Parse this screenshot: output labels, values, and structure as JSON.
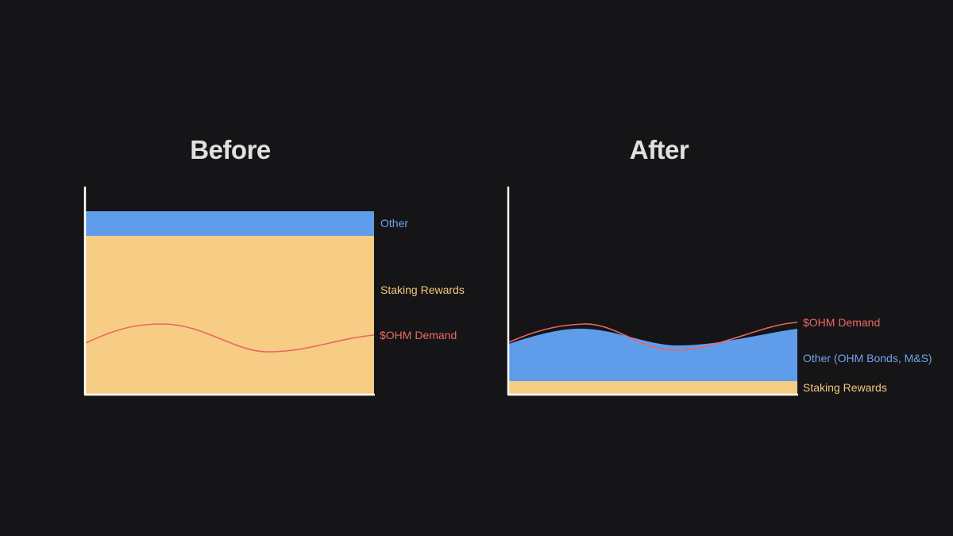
{
  "colors": {
    "background": "#151416",
    "other": "#5f9deb",
    "staking": "#f7cc85",
    "demand": "#e9675e",
    "axis": "#ffffff"
  },
  "before": {
    "title": "Before",
    "labels": {
      "other": "Other",
      "staking": "Staking Rewards",
      "demand": "$OHM Demand"
    }
  },
  "after": {
    "title": "After",
    "labels": {
      "demand": "$OHM Demand",
      "other": "Other (OHM Bonds, M&S)",
      "staking": "Staking Rewards"
    }
  }
}
